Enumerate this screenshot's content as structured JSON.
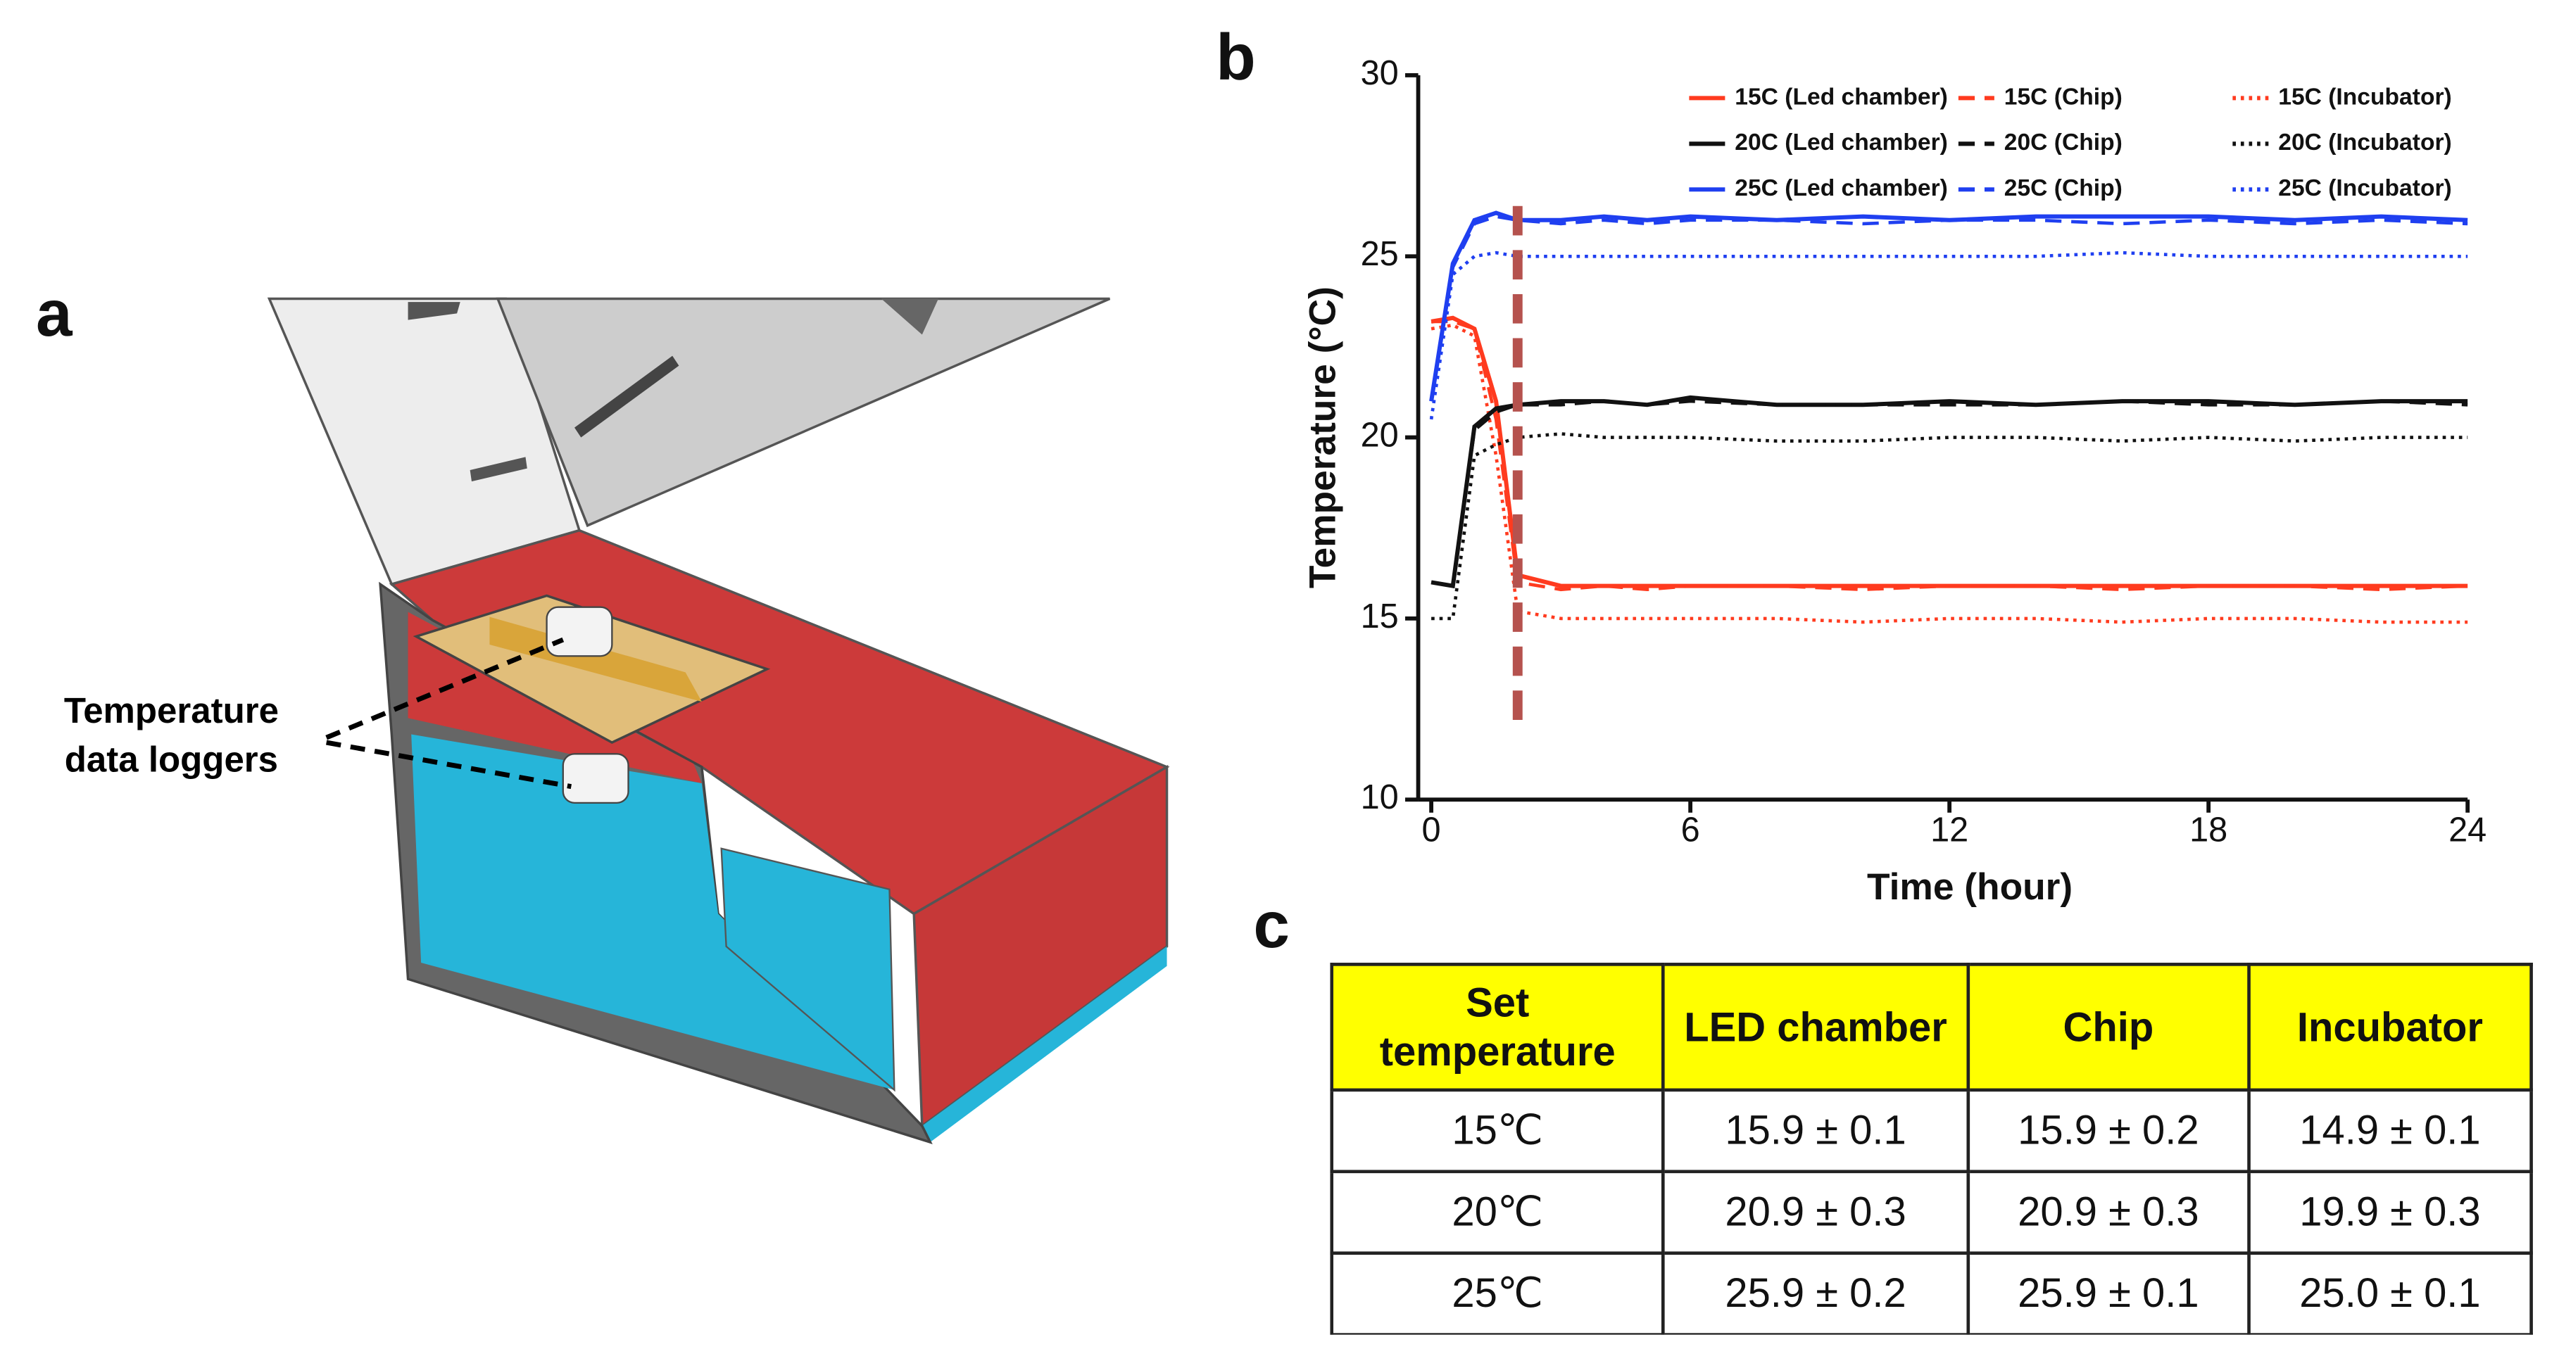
{
  "panels": {
    "a": "a",
    "b": "b",
    "c": "c"
  },
  "illustration": {
    "label_lines": [
      "Temperature",
      "data loggers"
    ]
  },
  "chart_data": {
    "type": "line",
    "xlabel": "Time (hour)",
    "ylabel": "Temperature (°C)",
    "xlim": [
      0,
      24
    ],
    "xticks": [
      0,
      6,
      12,
      18,
      24
    ],
    "ylim": [
      10,
      30
    ],
    "yticks": [
      10,
      15,
      20,
      25,
      30
    ],
    "x": [
      0,
      0.5,
      1,
      1.5,
      2,
      3,
      4,
      5,
      6,
      8,
      10,
      12,
      14,
      16,
      18,
      20,
      22,
      24
    ],
    "vline": {
      "x": 2,
      "y": [
        12.2,
        26.6
      ],
      "color": "#b5524e"
    },
    "legend": "upper right",
    "series": [
      {
        "name": "15C (Led chamber)",
        "color": "#ff3b1f",
        "style": "solid",
        "values": [
          23.2,
          23.3,
          23.0,
          21.0,
          16.2,
          15.9,
          15.9,
          15.9,
          15.9,
          15.9,
          15.9,
          15.9,
          15.9,
          15.9,
          15.9,
          15.9,
          15.9,
          15.9
        ]
      },
      {
        "name": "15C (Chip)",
        "color": "#ff3b1f",
        "style": "dashed",
        "values": [
          23.2,
          23.2,
          23.0,
          20.5,
          16.0,
          15.8,
          15.9,
          15.8,
          15.9,
          15.9,
          15.8,
          15.9,
          15.9,
          15.8,
          15.9,
          15.9,
          15.8,
          15.9
        ]
      },
      {
        "name": "15C (Incubator)",
        "color": "#ff3b1f",
        "style": "dotted",
        "values": [
          23.0,
          23.1,
          22.8,
          19.5,
          15.2,
          15.0,
          15.0,
          15.0,
          15.0,
          15.0,
          14.9,
          15.0,
          15.0,
          14.9,
          15.0,
          15.0,
          14.9,
          14.9
        ]
      },
      {
        "name": "20C (Led chamber)",
        "color": "#111111",
        "style": "solid",
        "values": [
          16.0,
          15.9,
          20.3,
          20.8,
          20.9,
          21.0,
          21.0,
          20.9,
          21.1,
          20.9,
          20.9,
          21.0,
          20.9,
          21.0,
          21.0,
          20.9,
          21.0,
          21.0
        ]
      },
      {
        "name": "20C (Chip)",
        "color": "#111111",
        "style": "dashed",
        "values": [
          16.0,
          15.9,
          20.2,
          20.7,
          20.9,
          20.9,
          21.0,
          20.9,
          21.0,
          20.9,
          20.9,
          20.9,
          20.9,
          21.0,
          20.9,
          20.9,
          21.0,
          20.9
        ]
      },
      {
        "name": "20C (Incubator)",
        "color": "#111111",
        "style": "dotted",
        "values": [
          15.0,
          15.0,
          19.5,
          19.8,
          20.0,
          20.1,
          20.0,
          20.0,
          20.0,
          19.9,
          19.9,
          20.0,
          20.0,
          19.9,
          20.0,
          19.9,
          20.0,
          20.0
        ]
      },
      {
        "name": "25C (Led chamber)",
        "color": "#1f3ff0",
        "style": "solid",
        "values": [
          21.0,
          24.8,
          26.0,
          26.2,
          26.0,
          26.0,
          26.1,
          26.0,
          26.1,
          26.0,
          26.1,
          26.0,
          26.1,
          26.1,
          26.1,
          26.0,
          26.1,
          26.0
        ]
      },
      {
        "name": "25C (Chip)",
        "color": "#1f3ff0",
        "style": "dashed",
        "values": [
          21.0,
          24.7,
          25.9,
          26.1,
          26.0,
          25.9,
          26.0,
          25.9,
          26.0,
          26.0,
          25.9,
          26.0,
          26.0,
          25.9,
          26.0,
          25.9,
          26.0,
          25.9
        ]
      },
      {
        "name": "25C (Incubator)",
        "color": "#1f3ff0",
        "style": "dotted",
        "values": [
          20.5,
          24.5,
          25.0,
          25.1,
          25.0,
          25.0,
          25.0,
          25.0,
          25.0,
          25.0,
          25.0,
          25.0,
          25.0,
          25.1,
          25.0,
          25.0,
          25.0,
          25.0
        ]
      }
    ]
  },
  "table": {
    "header": [
      "Set temperature",
      "LED chamber",
      "Chip",
      "Incubator"
    ],
    "rows": [
      [
        "15℃",
        "15.9 ± 0.1",
        "15.9 ± 0.2",
        "14.9 ± 0.1"
      ],
      [
        "20℃",
        "20.9 ± 0.3",
        "20.9 ± 0.3",
        "19.9 ± 0.3"
      ],
      [
        "25℃",
        "25.9 ± 0.2",
        "25.9 ± 0.1",
        "25.0 ± 0.1"
      ]
    ]
  }
}
